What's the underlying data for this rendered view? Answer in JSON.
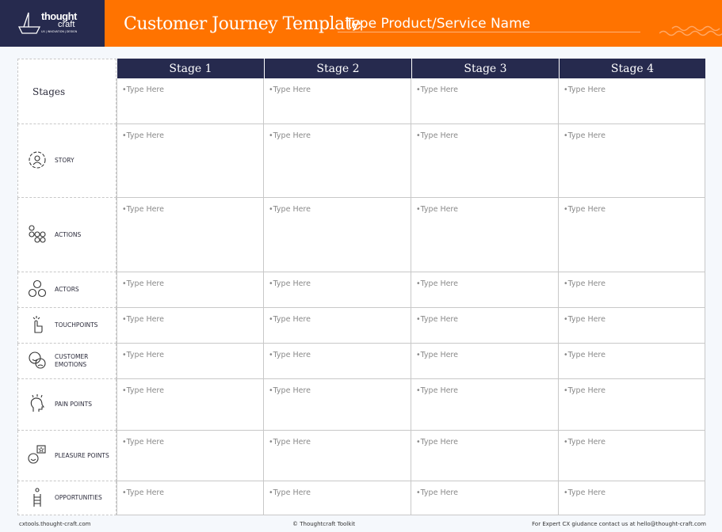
{
  "header": {
    "logo_text": [
      "thought",
      "craft",
      "UX | INNOVATION | DESIGN"
    ],
    "title": "Customer Journey Template",
    "product_placeholder": "Type Product/Service Name"
  },
  "colors": {
    "navy": "#262a4e",
    "orange": "#ff7300"
  },
  "table": {
    "stages_label": "Stages",
    "stages": [
      "Stage 1",
      "Stage 2",
      "Stage 3",
      "Stage 4"
    ],
    "cell_placeholder": "•Type Here",
    "rows": [
      {
        "label": "",
        "icon": "none"
      },
      {
        "label": "STORY",
        "icon": "user-circle-icon"
      },
      {
        "label": "ACTIONS",
        "icon": "flow-icon"
      },
      {
        "label": "ACTORS",
        "icon": "group-icon"
      },
      {
        "label": "TOUCHPOINTS",
        "icon": "finger-tap-icon"
      },
      {
        "label": "CUSTOMER EMOTIONS",
        "icon": "emotion-faces-icon"
      },
      {
        "label": "PAIN POINTS",
        "icon": "head-pain-icon"
      },
      {
        "label": "PLEASURE POINTS",
        "icon": "happy-star-icon"
      },
      {
        "label": "OPPORTUNITIES",
        "icon": "ladder-icon"
      }
    ]
  },
  "footer": {
    "left": "cxtools.thought-craft.com",
    "center": "Thoughtcraft Toolkit",
    "right": "For Expert CX giudance contact us at hello@thought-craft.com"
  }
}
